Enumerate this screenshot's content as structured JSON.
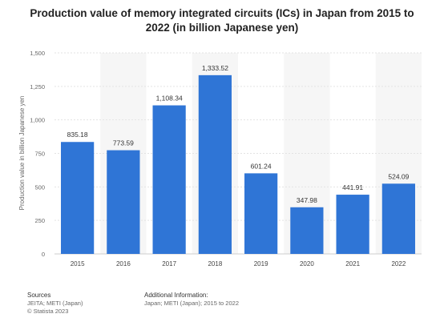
{
  "chart_data": {
    "type": "bar",
    "title": "Production value of memory integrated circuits (ICs) in Japan from 2015 to 2022 (in billion Japanese yen)",
    "xlabel": "",
    "ylabel": "Production value in billion Japanese yen",
    "categories": [
      "2015",
      "2016",
      "2017",
      "2018",
      "2019",
      "2020",
      "2021",
      "2022"
    ],
    "values": [
      835.18,
      773.59,
      1108.34,
      1333.52,
      601.24,
      347.98,
      441.91,
      524.09
    ],
    "value_labels": [
      "835.18",
      "773.59",
      "1,108.34",
      "1,333.52",
      "601.24",
      "347.98",
      "441.91",
      "524.09"
    ],
    "ylim": [
      0,
      1500
    ],
    "yticks": [
      0,
      250,
      500,
      750,
      1000,
      1250,
      1500
    ],
    "ytick_labels": [
      "0",
      "250",
      "500",
      "750",
      "1,000",
      "1,250",
      "1,500"
    ],
    "grid": true,
    "bar_color": "#2f75d6",
    "band_color": "#f6f6f6"
  },
  "footer": {
    "sources_heading": "Sources",
    "sources_lines": [
      "JEITA; METI (Japan)",
      "© Statista 2023"
    ],
    "additional_heading": "Additional Information:",
    "additional_lines": [
      "Japan; METI (Japan); 2015 to 2022"
    ]
  }
}
